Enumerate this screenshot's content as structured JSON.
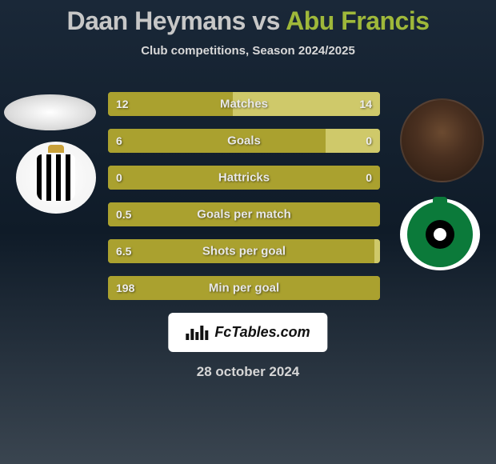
{
  "title": {
    "player1": "Daan Heymans",
    "vs": "vs",
    "player2": "Abu Francis"
  },
  "subtitle": "Club competitions, Season 2024/2025",
  "colors": {
    "bar_primary": "#aaa12f",
    "bar_secondary": "#cfc96a",
    "bg_top": "#1a2838",
    "bg_mid": "#0f1b28",
    "bg_bottom": "#3a4550",
    "text_light": "#e8e8e8",
    "accent_green": "#9fb83a"
  },
  "stats": [
    {
      "label": "Matches",
      "left_val": "12",
      "right_val": "14",
      "left_pct": 46,
      "right_pct": 54
    },
    {
      "label": "Goals",
      "left_val": "6",
      "right_val": "0",
      "left_pct": 80,
      "right_pct": 20
    },
    {
      "label": "Hattricks",
      "left_val": "0",
      "right_val": "0",
      "left_pct": 100,
      "right_pct": 0
    },
    {
      "label": "Goals per match",
      "left_val": "0.5",
      "right_val": "",
      "left_pct": 100,
      "right_pct": 0
    },
    {
      "label": "Shots per goal",
      "left_val": "6.5",
      "right_val": "",
      "left_pct": 98,
      "right_pct": 2
    },
    {
      "label": "Min per goal",
      "left_val": "198",
      "right_val": "",
      "left_pct": 100,
      "right_pct": 0
    }
  ],
  "brand": "FcTables.com",
  "date": "28 october 2024"
}
